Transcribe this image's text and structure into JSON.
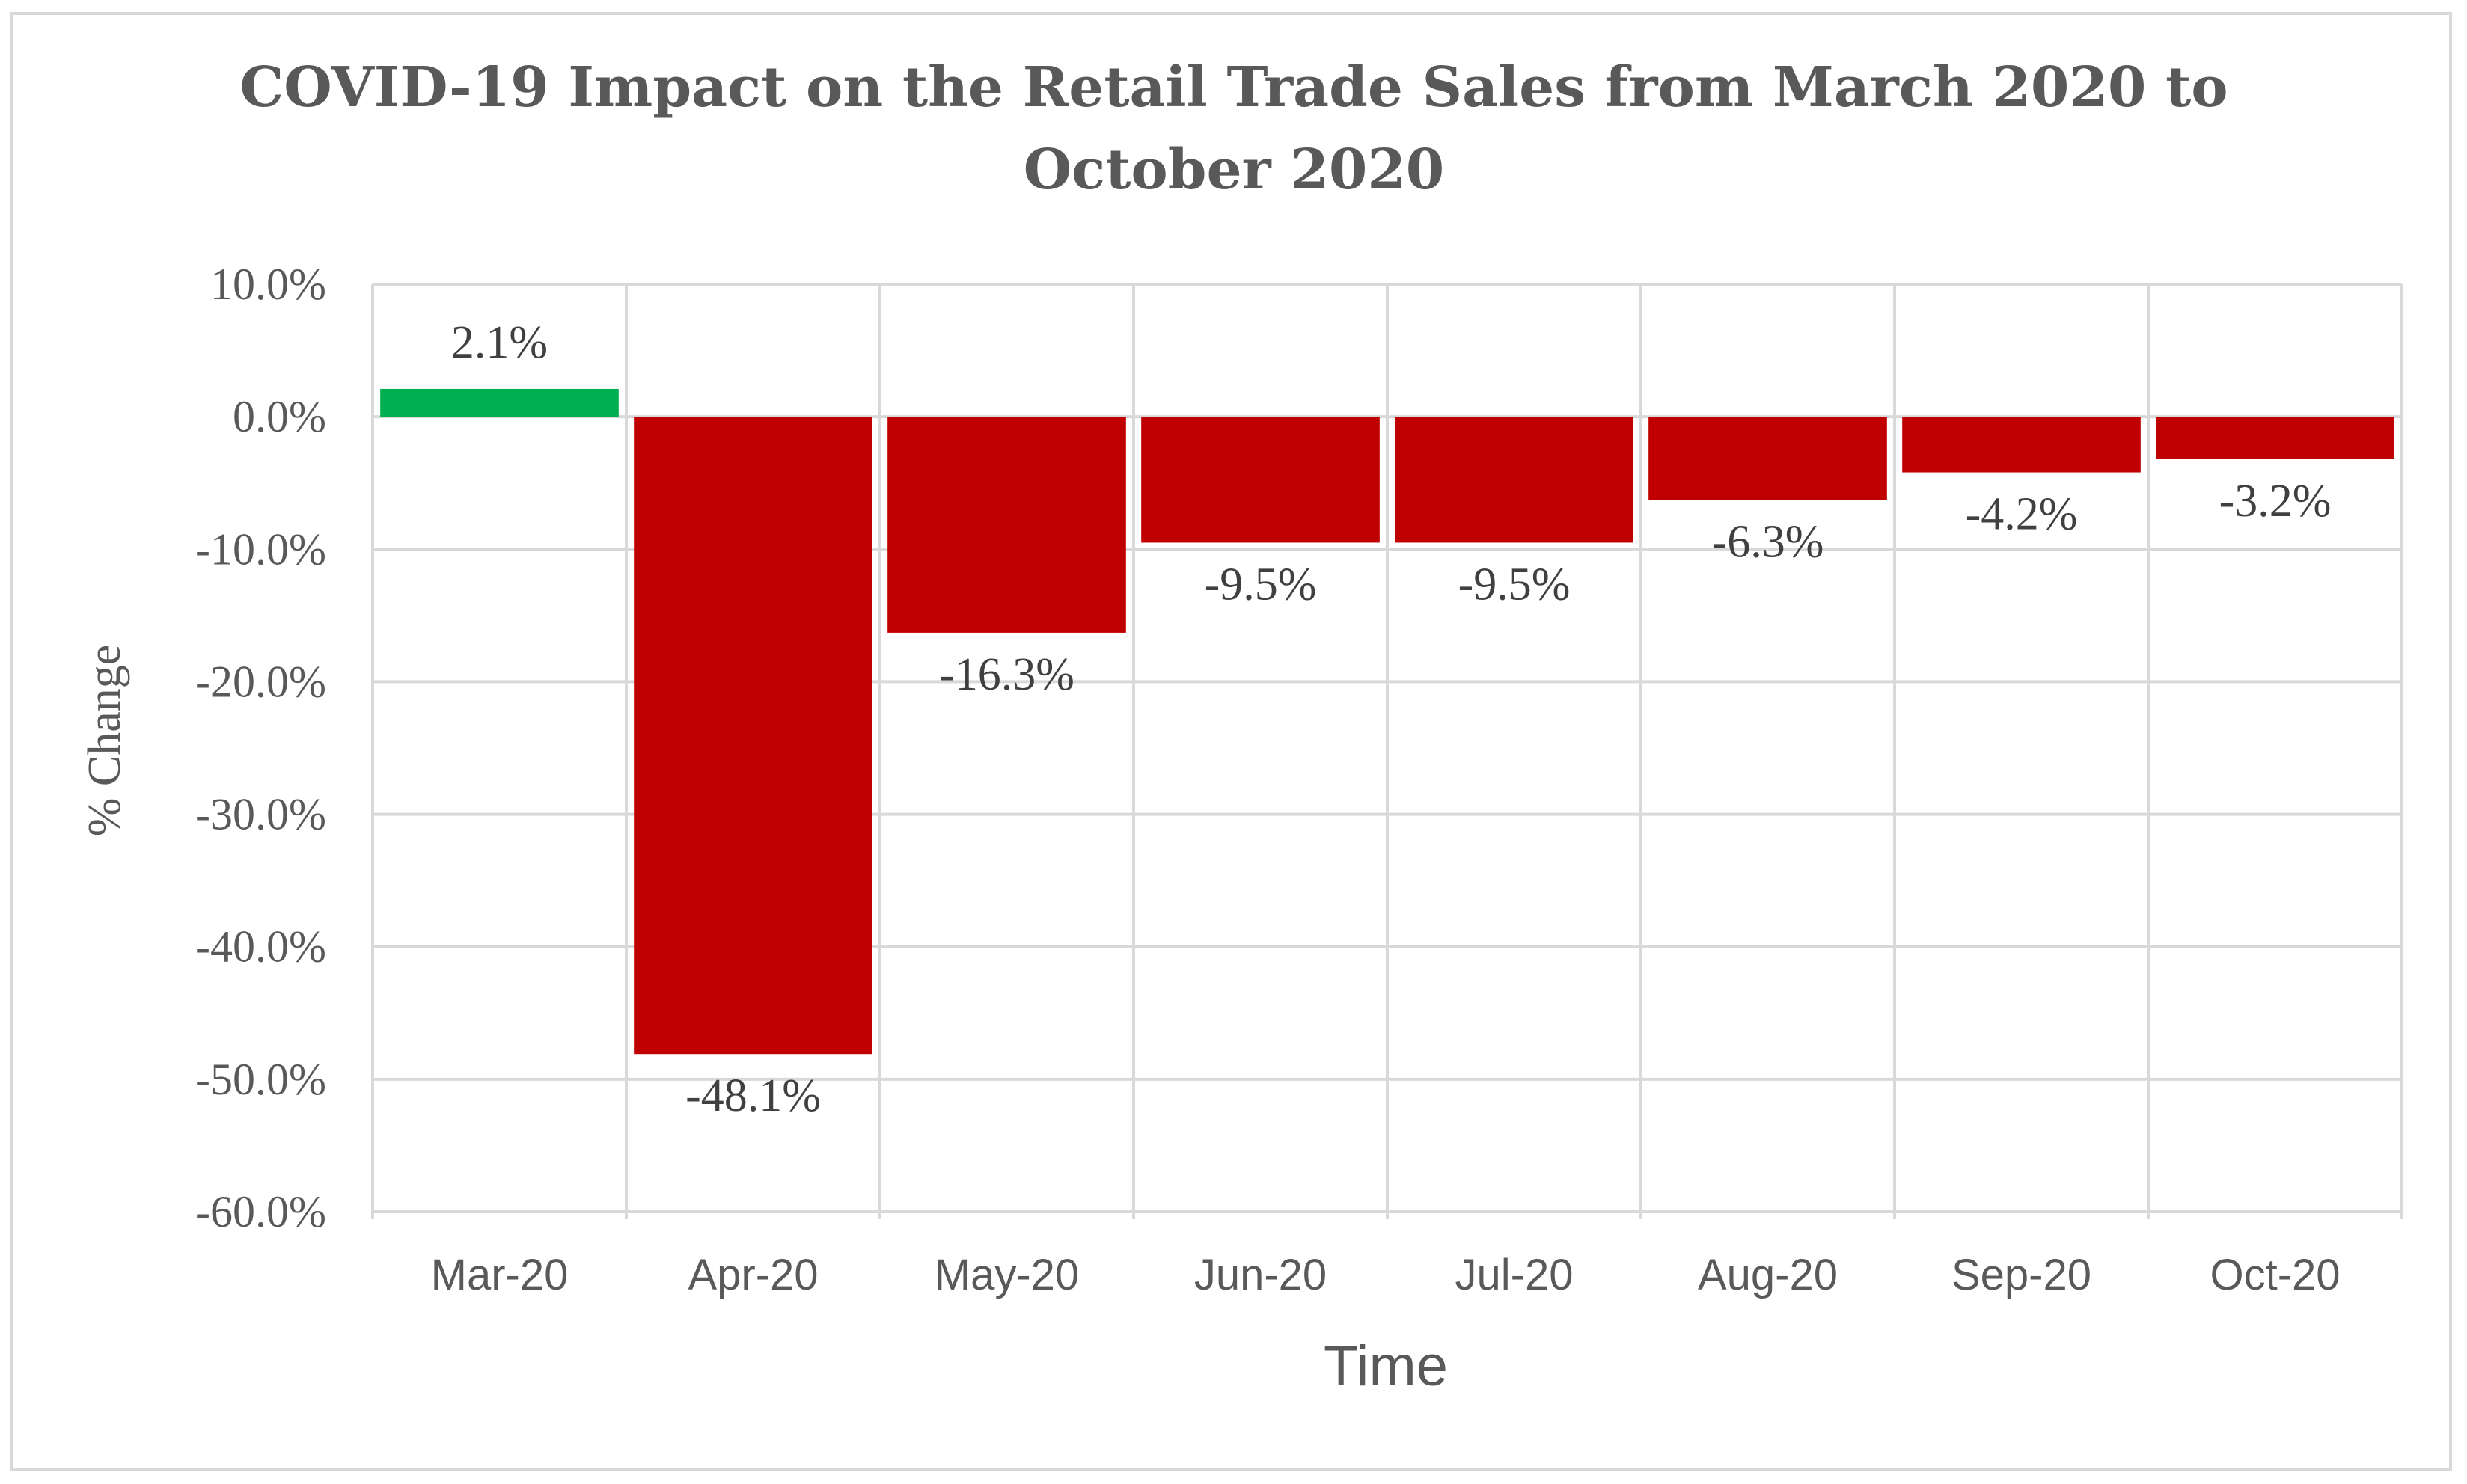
{
  "chart_data": {
    "type": "bar",
    "title_lines": [
      "COVID-19 Impact on the Retail Trade Sales from March 2020 to",
      "October 2020"
    ],
    "xlabel": "Time",
    "ylabel": "% Change",
    "categories": [
      "Mar-20",
      "Apr-20",
      "May-20",
      "Jun-20",
      "Jul-20",
      "Aug-20",
      "Sep-20",
      "Oct-20"
    ],
    "values": [
      2.1,
      -48.1,
      -16.3,
      -9.5,
      -9.5,
      -6.3,
      -4.2,
      -3.2
    ],
    "data_labels": [
      "2.1%",
      "-48.1%",
      "-16.3%",
      "-9.5%",
      "-9.5%",
      "-6.3%",
      "-4.2%",
      "-3.2%"
    ],
    "ylim": [
      -60,
      10
    ],
    "y_ticks": [
      10,
      0,
      -10,
      -20,
      -30,
      -40,
      -50,
      -60
    ],
    "y_tick_labels": [
      "10.0%",
      "0.0%",
      "-10.0%",
      "-20.0%",
      "-30.0%",
      "-40.0%",
      "-50.0%",
      "-60.0%"
    ],
    "grid": true,
    "vertical_gridlines": true,
    "legend": "none",
    "colors": {
      "positive": "#00b050",
      "negative": "#c00000",
      "grid": "#d9d9d9",
      "text": "#595959",
      "label": "#404040"
    }
  }
}
